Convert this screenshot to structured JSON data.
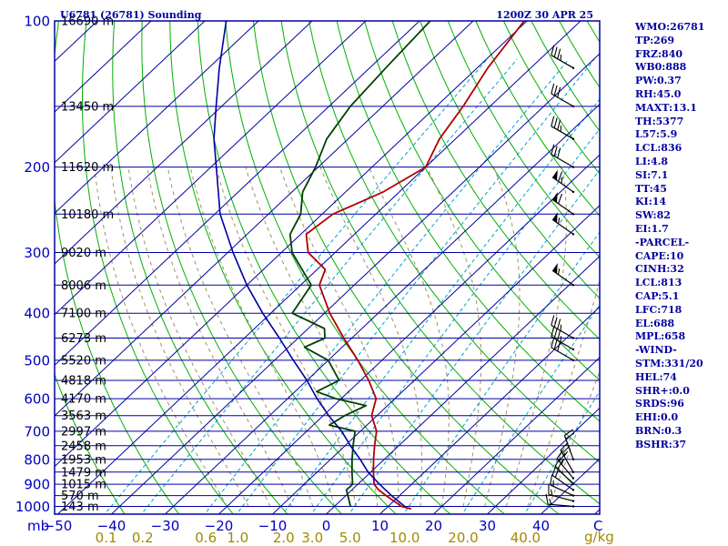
{
  "header": {
    "station": "U6781 (26781) Sounding",
    "valid_time": "1200Z 30 APR 25"
  },
  "indices": [
    "WMO:26781",
    "TP:269",
    "FRZ:840",
    "WB0:888",
    "PW:0.37",
    "RH:45.0",
    "MAXT:13.1",
    "TH:5377",
    "L57:5.9",
    "LCL:836",
    "LI:4.8",
    "SI:7.1",
    "TT:45",
    "KI:14",
    "SW:82",
    "EI:1.7",
    "-PARCEL-",
    "CAPE:10",
    "CINH:32",
    "LCL:813",
    "CAP:5.1",
    "LFC:718",
    "EL:688",
    "MPL:658",
    "-WIND-",
    "STM:331/20",
    "HEL:74",
    "SHR+:0.0",
    "SRDS:96",
    "EHI:0.0",
    "BRN:0.3",
    "BSHR:37"
  ],
  "axis_units": {
    "pressure": "mb",
    "mixing_ratio": "g/kg",
    "temperature": "C"
  },
  "colors": {
    "frame": "#0000a0",
    "isobar": "#0000a0",
    "isotherm": "#0000a0",
    "dry_adiabat": "#00b000",
    "moist_adiabat": "#a09060",
    "mixing_ratio": "#00a0d0",
    "temperature": "#b00000",
    "dewpoint": "#004000",
    "parcel": "#0000a0",
    "wind": "#000000"
  },
  "chart_data": {
    "type": "line",
    "diagram": "skew-T log-P",
    "pressure_ticks": [
      100,
      200,
      300,
      400,
      500,
      600,
      700,
      800,
      900,
      1000
    ],
    "pressure_tick_labels": [
      "100",
      "200",
      "300",
      "400",
      "500",
      "600",
      "700",
      "800",
      "900",
      "1000"
    ],
    "temperature_ticks": [
      -50,
      -40,
      -30,
      -20,
      -10,
      0,
      10,
      20,
      30,
      40
    ],
    "temperature_tick_labels": [
      "-50",
      "-40",
      "-30",
      "-20",
      "-10",
      "0",
      "10",
      "20",
      "30",
      "40"
    ],
    "mixing_ratio_ticks": [
      0.1,
      0.2,
      0.6,
      1.0,
      2.0,
      3.0,
      5.0,
      10.0,
      20.0,
      40.0
    ],
    "mixing_ratio_tick_labels": [
      "0.1",
      "0.2",
      "0.6",
      "1.0",
      "2.0",
      "3.0",
      "5.0",
      "10.0",
      "20.0",
      "40.0"
    ],
    "height_levels": [
      {
        "p": 100,
        "label": "16690 m"
      },
      {
        "p": 150,
        "label": "13450 m"
      },
      {
        "p": 200,
        "label": "11620 m"
      },
      {
        "p": 250,
        "label": "10180 m"
      },
      {
        "p": 300,
        "label": "9020 m"
      },
      {
        "p": 350,
        "label": "8006 m"
      },
      {
        "p": 400,
        "label": "7100 m"
      },
      {
        "p": 450,
        "label": "6273 m"
      },
      {
        "p": 500,
        "label": "5520 m"
      },
      {
        "p": 550,
        "label": "4818 m"
      },
      {
        "p": 600,
        "label": "4170 m"
      },
      {
        "p": 650,
        "label": "3563 m"
      },
      {
        "p": 700,
        "label": "2997 m"
      },
      {
        "p": 750,
        "label": "2458 m"
      },
      {
        "p": 800,
        "label": "1953 m"
      },
      {
        "p": 850,
        "label": "1479 m"
      },
      {
        "p": 900,
        "label": "1015 m"
      },
      {
        "p": 950,
        "label": "570 m"
      },
      {
        "p": 1000,
        "label": "143 m"
      }
    ],
    "plim": [
      1000,
      100
    ],
    "tlim_at_base": [
      -50,
      50
    ],
    "series": [
      {
        "key": "temperature",
        "p": [
          1012,
          1000,
          950,
          925,
          900,
          850,
          800,
          750,
          700,
          650,
          600,
          550,
          500,
          450,
          400,
          350,
          325,
          300,
          275,
          250,
          225,
          200,
          175,
          150,
          125,
          100
        ],
        "t": [
          14.8,
          12.5,
          7.5,
          5.0,
          3.0,
          0.5,
          -2.0,
          -4.5,
          -7.0,
          -11.0,
          -13.5,
          -18.5,
          -24.5,
          -31.5,
          -39.0,
          -46.5,
          -48.5,
          -55.0,
          -59.0,
          -58.0,
          -53.0,
          -50.0,
          -53.0,
          -55.0,
          -58.0,
          -60.5
        ]
      },
      {
        "key": "dewpoint",
        "p": [
          1000,
          925,
          900,
          850,
          800,
          750,
          700,
          680,
          650,
          620,
          600,
          580,
          550,
          500,
          470,
          450,
          430,
          400,
          350,
          300,
          275,
          250,
          225,
          200,
          175,
          150,
          125,
          100
        ],
        "t": [
          3.0,
          -1.0,
          -1.0,
          -3.5,
          -6.0,
          -8.5,
          -11.0,
          -17.0,
          -16.0,
          -14.0,
          -21.0,
          -26.0,
          -24.0,
          -30.0,
          -37.0,
          -35.0,
          -37.0,
          -46.0,
          -48.0,
          -58.0,
          -62.0,
          -64.0,
          -68.0,
          -70.5,
          -74.0,
          -76.0,
          -77.0,
          -78.0
        ]
      },
      {
        "key": "parcel",
        "p": [
          1000,
          950,
          900,
          850,
          800,
          750,
          700,
          650,
          600,
          550,
          500,
          450,
          400,
          350,
          300,
          250,
          200,
          175,
          150,
          125,
          100
        ],
        "t": [
          13.1,
          8.5,
          4.0,
          -0.5,
          -4.5,
          -9.0,
          -13.5,
          -19.0,
          -24.5,
          -30.0,
          -36.5,
          -43.5,
          -51.5,
          -60.0,
          -69.0,
          -79.0,
          -89.0,
          -95.0,
          -101.0,
          -108.0,
          -116.0
        ]
      }
    ],
    "wind_barbs": [
      {
        "p": 1000,
        "dir": 275,
        "spd": 15
      },
      {
        "p": 975,
        "dir": 285,
        "spd": 15
      },
      {
        "p": 950,
        "dir": 295,
        "spd": 15
      },
      {
        "p": 925,
        "dir": 305,
        "spd": 20
      },
      {
        "p": 900,
        "dir": 315,
        "spd": 20
      },
      {
        "p": 875,
        "dir": 320,
        "spd": 25
      },
      {
        "p": 850,
        "dir": 330,
        "spd": 25
      },
      {
        "p": 800,
        "dir": 340,
        "spd": 20
      },
      {
        "p": 500,
        "dir": 300,
        "spd": 30
      },
      {
        "p": 475,
        "dir": 300,
        "spd": 35
      },
      {
        "p": 450,
        "dir": 300,
        "spd": 35
      },
      {
        "p": 350,
        "dir": 305,
        "spd": 55
      },
      {
        "p": 275,
        "dir": 305,
        "spd": 55
      },
      {
        "p": 250,
        "dir": 305,
        "spd": 60
      },
      {
        "p": 225,
        "dir": 305,
        "spd": 65
      },
      {
        "p": 200,
        "dir": 300,
        "spd": 30
      },
      {
        "p": 175,
        "dir": 300,
        "spd": 35
      },
      {
        "p": 150,
        "dir": 300,
        "spd": 30
      },
      {
        "p": 125,
        "dir": 300,
        "spd": 35
      }
    ]
  }
}
